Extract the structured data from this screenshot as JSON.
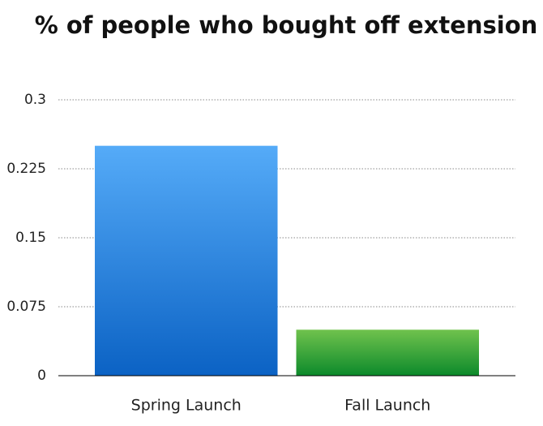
{
  "chart_data": {
    "type": "bar",
    "title": "% of people who bought off extension",
    "categories": [
      "Spring Launch",
      "Fall Launch"
    ],
    "values": [
      0.25,
      0.05
    ],
    "colors": [
      [
        "#55abf8",
        "#0b62c4"
      ],
      [
        "#70c24d",
        "#0c8a2b"
      ]
    ],
    "ylim": [
      0,
      0.3
    ],
    "yticks": [
      0,
      0.075,
      0.15,
      0.225,
      0.3
    ],
    "grid": true
  }
}
